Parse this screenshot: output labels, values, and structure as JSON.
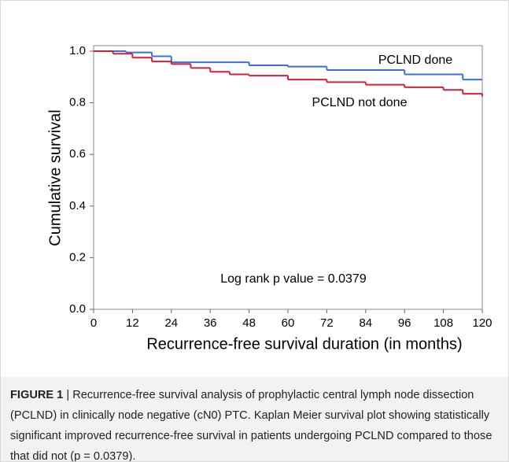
{
  "chart_data": {
    "type": "step",
    "x_label": "Recurrence-free survival duration (in months)",
    "y_label": "Cumulative survival",
    "xlim": [
      0,
      120
    ],
    "xticks": [
      0,
      12,
      24,
      36,
      48,
      60,
      72,
      84,
      96,
      108,
      120
    ],
    "ylim": [
      0,
      1
    ],
    "yticks": [
      {
        "value": 0,
        "label": "0.0"
      },
      {
        "value": 0.2,
        "label": "0.2"
      },
      {
        "value": 0.4,
        "label": "0.4"
      },
      {
        "value": 0.6,
        "label": "0.6"
      },
      {
        "value": 0.8,
        "label": "0.8"
      },
      {
        "value": 1,
        "label": "1.0"
      }
    ],
    "series": [
      {
        "name": "PCLND done",
        "color": "#3b6fe0",
        "x": [
          0,
          10,
          18,
          24,
          48,
          60,
          72,
          96,
          114,
          120
        ],
        "values": [
          1.0,
          0.995,
          0.98,
          0.957,
          0.945,
          0.94,
          0.927,
          0.91,
          0.89,
          0.89
        ]
      },
      {
        "name": "PCLND not done",
        "color": "#d42038",
        "x": [
          0,
          6,
          12,
          18,
          24,
          30,
          36,
          42,
          48,
          60,
          72,
          84,
          96,
          108,
          114,
          120
        ],
        "values": [
          1.0,
          0.99,
          0.975,
          0.96,
          0.95,
          0.935,
          0.92,
          0.91,
          0.905,
          0.89,
          0.88,
          0.87,
          0.86,
          0.85,
          0.835,
          0.825
        ]
      }
    ],
    "annotation": "Log rank p value = 0.0379"
  },
  "caption": {
    "label": "FIGURE 1",
    "text": "| Recurrence-free survival analysis of prophylactic central lymph node dissection (PCLND) in clinically node negative (cN0) PTC. Kaplan Meier survival plot showing statistically significant improved recurrence-free survival in patients undergoing PCLND compared to those that did not (p = 0.0379)."
  }
}
